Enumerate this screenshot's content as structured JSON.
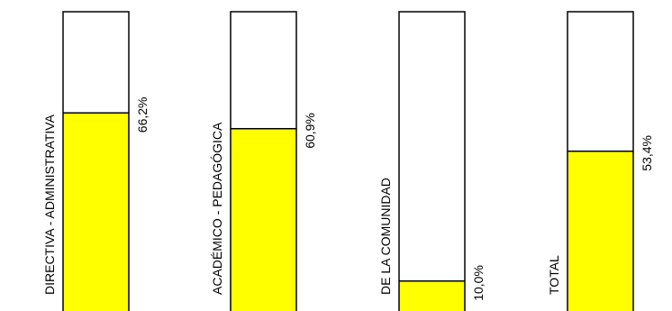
{
  "chart_data": {
    "type": "bar",
    "title": "",
    "xlabel": "",
    "ylabel": "",
    "ylim": [
      0,
      100
    ],
    "categories": [
      "DIRECTIVA - ADMINISTRATIVA",
      "ACADÉMICO - PEDAGÓGICA",
      "DE LA COMUNIDAD",
      "TOTAL"
    ],
    "values": [
      66.2,
      60.9,
      10.0,
      53.4
    ],
    "value_labels": [
      "66,2%",
      "60,9%",
      "10,0%",
      "53,4%"
    ],
    "grid": false,
    "legend": "none",
    "colors": {
      "fill": "#ffff00",
      "empty": "#ffffff",
      "outline": "#000000"
    }
  }
}
